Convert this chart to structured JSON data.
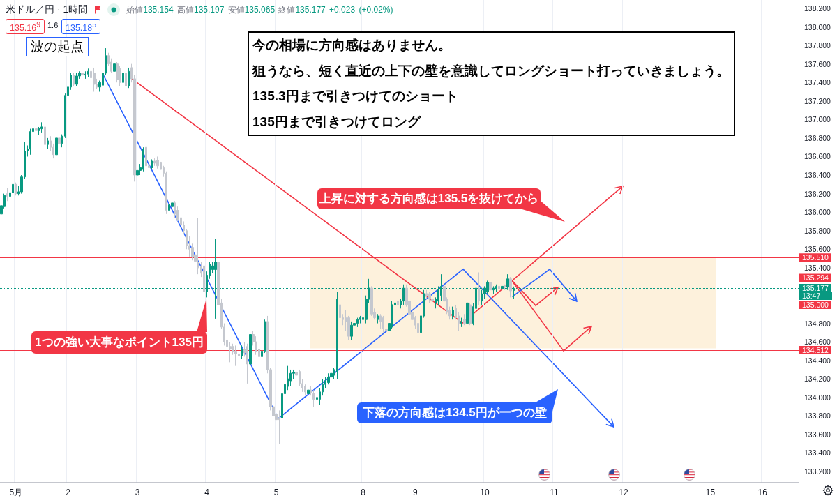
{
  "chart_data": {
    "type": "candlestick",
    "title": "米ドル／円 · 1時間",
    "subtitle": "始値135.154 高値135.197 安値135.065 終値135.177 +0.023 (+0.02%)",
    "annotations": [
      "波の起点",
      "今の相場に方向感はありません。",
      "狙うなら、短く直近の上下の壁を意識してロングショート打っていきましょう。",
      "135.3円まで引きつけてのショート",
      "135円まで引きつけてロング",
      "上昇に対する方向感は135.5を抜けてから",
      "1つの強い大事なポイント135円",
      "下落の方向感は134.5円が一つの壁",
      "135.16$^{9}$",
      "1.6",
      "135.18$^{5}$",
      "13:47"
    ],
    "categories": [
      null,
      null,
      null,
      null,
      null,
      "5月",
      null,
      null,
      null,
      null,
      null,
      null,
      null,
      null,
      null,
      null,
      null,
      null,
      null,
      null,
      null,
      null,
      null,
      "2",
      null,
      null,
      null,
      null,
      null,
      null,
      null,
      null,
      null,
      null,
      null,
      null,
      null,
      null,
      null,
      null,
      null,
      null,
      null,
      null,
      null,
      null,
      null,
      "3",
      null,
      null,
      null,
      null,
      null,
      null,
      null,
      null,
      null,
      null,
      null,
      null,
      null,
      null,
      null,
      null,
      null,
      null,
      null,
      null,
      null,
      null,
      null,
      "4",
      null,
      null,
      null,
      null,
      null,
      null,
      null,
      null,
      null,
      null,
      null,
      null,
      null,
      null,
      null,
      null,
      null,
      null,
      null,
      null,
      null,
      null,
      null,
      "5",
      null,
      null,
      null,
      null,
      null,
      null,
      null,
      null,
      null,
      null,
      null,
      null,
      null,
      null,
      null,
      null,
      null,
      null,
      null,
      null,
      null,
      null,
      null,
      null,
      null,
      null,
      null,
      null,
      null,
      "8",
      null,
      null,
      null,
      null,
      null,
      null,
      null,
      null,
      null,
      null,
      null,
      null,
      null,
      null,
      null,
      null,
      null,
      "9",
      null,
      null,
      null,
      null,
      null,
      null,
      null,
      null,
      null,
      null,
      null,
      null,
      null,
      null,
      null,
      null,
      null,
      null,
      null,
      null,
      null,
      null,
      null,
      "10",
      null,
      null,
      null,
      null,
      null,
      null,
      null,
      null,
      null,
      null,
      null,
      null,
      null,
      null,
      null,
      null,
      null,
      null,
      null,
      null,
      null,
      null,
      null,
      "11",
      null,
      null,
      null,
      null,
      null,
      null,
      null,
      null,
      null,
      null,
      null,
      null,
      null,
      null,
      null,
      null,
      null,
      null,
      null,
      null,
      null,
      null,
      null,
      "12",
      null,
      null,
      null,
      null,
      null,
      null,
      null,
      null,
      null,
      null,
      null,
      null,
      null,
      null,
      null,
      null,
      null,
      null,
      null,
      null,
      null,
      null,
      null,
      null,
      null,
      null,
      null,
      null,
      null,
      "15",
      null,
      null,
      null,
      null,
      null,
      null,
      null,
      null,
      null,
      null,
      null,
      null,
      null,
      null,
      null,
      null,
      null,
      "16",
      null,
      null,
      null,
      null,
      null,
      null,
      null,
      null,
      null,
      null,
      null,
      null
    ],
    "ohlc": [
      [
        135.98,
        136.1,
        135.96,
        136.07
      ],
      [
        136.06,
        136.2,
        136.04,
        136.18
      ],
      [
        136.2,
        136.26,
        136.12,
        136.17
      ],
      [
        136.17,
        136.24,
        136.14,
        136.21
      ],
      [
        136.21,
        136.33,
        136.18,
        136.3
      ],
      [
        136.3,
        136.32,
        136.18,
        136.2
      ],
      [
        136.2,
        136.28,
        136.18,
        136.22
      ],
      [
        136.22,
        136.4,
        136.2,
        136.38
      ],
      [
        136.38,
        136.76,
        136.36,
        136.66
      ],
      [
        136.66,
        136.72,
        136.6,
        136.68
      ],
      [
        136.68,
        136.9,
        136.62,
        136.87
      ],
      [
        136.87,
        136.93,
        136.82,
        136.9
      ],
      [
        136.9,
        136.93,
        136.84,
        136.88
      ],
      [
        136.88,
        136.92,
        136.83,
        136.9
      ],
      [
        136.9,
        136.97,
        136.86,
        136.92
      ],
      [
        136.92,
        136.95,
        136.69,
        136.73
      ],
      [
        136.73,
        136.8,
        136.68,
        136.77
      ],
      [
        136.77,
        136.82,
        136.66,
        136.7
      ],
      [
        136.7,
        136.74,
        136.58,
        136.62
      ],
      [
        136.62,
        136.83,
        136.6,
        136.8
      ],
      [
        136.8,
        136.84,
        136.72,
        136.74
      ],
      [
        136.74,
        136.84,
        136.7,
        136.82
      ],
      [
        136.82,
        137.28,
        136.8,
        137.26
      ],
      [
        137.26,
        137.38,
        137.22,
        137.35
      ],
      [
        137.35,
        137.5,
        137.32,
        137.48
      ],
      [
        137.48,
        137.5,
        137.36,
        137.38
      ],
      [
        137.38,
        137.5,
        137.36,
        137.47
      ],
      [
        137.47,
        137.52,
        137.44,
        137.5
      ],
      [
        137.5,
        137.54,
        137.46,
        137.48
      ],
      [
        137.48,
        137.52,
        137.44,
        137.49
      ],
      [
        137.49,
        137.55,
        137.46,
        137.52
      ],
      [
        137.52,
        137.56,
        137.43,
        137.45
      ],
      [
        137.5,
        137.56,
        137.3,
        137.38
      ],
      [
        137.38,
        137.44,
        137.33,
        137.35
      ],
      [
        137.35,
        137.42,
        137.3,
        137.4
      ],
      [
        137.37,
        137.52,
        137.35,
        137.5
      ],
      [
        137.5,
        137.77,
        137.48,
        137.69
      ],
      [
        137.69,
        137.72,
        137.58,
        137.6
      ],
      [
        137.62,
        137.66,
        137.5,
        137.52
      ],
      [
        137.52,
        137.72,
        137.5,
        137.6
      ],
      [
        137.6,
        137.62,
        137.4,
        137.43
      ],
      [
        137.55,
        137.58,
        137.36,
        137.4
      ],
      [
        137.4,
        137.56,
        137.25,
        137.5
      ],
      [
        137.5,
        137.54,
        137.32,
        137.36
      ],
      [
        137.36,
        137.56,
        137.34,
        137.52
      ],
      [
        137.56,
        137.6,
        137.4,
        137.44
      ],
      [
        137.44,
        137.48,
        136.33,
        136.4
      ],
      [
        136.4,
        136.5,
        136.36,
        136.45
      ],
      [
        136.45,
        136.52,
        136.4,
        136.48
      ],
      [
        136.46,
        136.7,
        136.44,
        136.68
      ],
      [
        136.7,
        136.72,
        136.46,
        136.5
      ],
      [
        136.5,
        136.6,
        136.44,
        136.48
      ],
      [
        136.48,
        136.57,
        136.46,
        136.55
      ],
      [
        136.55,
        136.58,
        136.5,
        136.53
      ],
      [
        136.56,
        136.6,
        136.47,
        136.5
      ],
      [
        136.54,
        136.58,
        136.42,
        136.46
      ],
      [
        136.48,
        136.5,
        136.38,
        136.42
      ],
      [
        136.42,
        136.44,
        135.98,
        136.02
      ],
      [
        136.02,
        136.16,
        135.98,
        136.08
      ],
      [
        136.06,
        136.14,
        135.96,
        136.1
      ],
      [
        136.1,
        136.12,
        135.94,
        135.98
      ],
      [
        136.02,
        136.06,
        135.9,
        135.92
      ],
      [
        135.94,
        136,
        135.84,
        135.86
      ],
      [
        135.86,
        135.9,
        135.76,
        135.8
      ],
      [
        135.8,
        135.82,
        135.6,
        135.64
      ],
      [
        135.64,
        135.74,
        135.52,
        135.6
      ],
      [
        135.62,
        135.66,
        135.48,
        135.52
      ],
      [
        135.54,
        135.58,
        135.42,
        135.47
      ],
      [
        135.46,
        135.94,
        135.33,
        135.4
      ],
      [
        135.42,
        135.46,
        135.3,
        135.34
      ],
      [
        135.42,
        135.46,
        135.1,
        135.14
      ],
      [
        135.14,
        135.36,
        135.08,
        135.32
      ],
      [
        135.32,
        135.46,
        135.28,
        135.44
      ],
      [
        135.38,
        135.46,
        135.34,
        135.42
      ],
      [
        135.38,
        135.71,
        134.85,
        135.46
      ],
      [
        135.46,
        135.67,
        134.96,
        135
      ],
      [
        135.02,
        135.06,
        134.74,
        134.76
      ],
      [
        134.76,
        134.8,
        134.56,
        134.6
      ],
      [
        134.62,
        134.66,
        134.5,
        134.55
      ],
      [
        134.55,
        134.6,
        134.38,
        134.52
      ],
      [
        134.55,
        134.58,
        134.46,
        134.5
      ],
      [
        134.5,
        134.56,
        134.34,
        134.47
      ],
      [
        134.47,
        134.5,
        134.42,
        134.45
      ],
      [
        134.45,
        134.56,
        134.42,
        134.52
      ],
      [
        134.52,
        134.6,
        134.44,
        134.48
      ],
      [
        134.55,
        134.58,
        134.15,
        134.36
      ],
      [
        134.36,
        134.82,
        134.34,
        134.68
      ],
      [
        134.68,
        134.72,
        134.56,
        134.6
      ],
      [
        134.6,
        134.66,
        134.46,
        134.5
      ],
      [
        134.52,
        134.56,
        134.36,
        134.44
      ],
      [
        134.44,
        134.54,
        134.38,
        134.5
      ],
      [
        134.5,
        134.84,
        134.48,
        134.82
      ],
      [
        134.82,
        134.88,
        134.26,
        134.3
      ],
      [
        134.3,
        134.32,
        133.86,
        133.9
      ],
      [
        133.9,
        133.98,
        133.76,
        133.8
      ],
      [
        133.82,
        133.88,
        133.72,
        133.76
      ],
      [
        133.78,
        133.86,
        133.5,
        133.76
      ],
      [
        133.78,
        134.08,
        133.74,
        134.04
      ],
      [
        134.04,
        134.18,
        134,
        134.14
      ],
      [
        134.12,
        134.34,
        134.08,
        134.2
      ],
      [
        134.18,
        134.3,
        134.12,
        134.26
      ],
      [
        134.26,
        134.3,
        134.2,
        134.27
      ],
      [
        134.27,
        134.3,
        134.18,
        134.24
      ],
      [
        134.28,
        134.3,
        134.12,
        134.15
      ],
      [
        134.15,
        134.2,
        134.06,
        134.1
      ],
      [
        134.12,
        134.14,
        134.02,
        134.06
      ],
      [
        134.04,
        134.12,
        134,
        134.08
      ],
      [
        134.08,
        134.12,
        134.02,
        134.05
      ],
      [
        134.04,
        134.08,
        133.9,
        133.98
      ],
      [
        133.98,
        134.04,
        133.92,
        134
      ],
      [
        133.98,
        134.1,
        133.92,
        134.06
      ],
      [
        134.06,
        134.2,
        134.02,
        134.14
      ],
      [
        134.14,
        134.22,
        134.1,
        134.18
      ],
      [
        134.16,
        134.26,
        134.14,
        134.22
      ],
      [
        134.22,
        134.3,
        134.18,
        134.26
      ],
      [
        134.24,
        134.32,
        134.2,
        134.3
      ],
      [
        134.28,
        135.14,
        134.2,
        135.06
      ],
      [
        135,
        135.08,
        134.72,
        134.86
      ],
      [
        134.86,
        134.9,
        134.78,
        134.84
      ],
      [
        134.86,
        134.94,
        134.72,
        134.82
      ],
      [
        134.86,
        134.88,
        134.62,
        134.66
      ],
      [
        134.66,
        134.82,
        134.62,
        134.78
      ],
      [
        134.78,
        134.84,
        134.74,
        134.8
      ],
      [
        134.8,
        134.86,
        134.76,
        134.84
      ],
      [
        134.84,
        134.88,
        134.8,
        134.86
      ],
      [
        134.84,
        134.9,
        134.8,
        134.86
      ],
      [
        134.84,
        135.1,
        134.8,
        135.06
      ],
      [
        135.06,
        135.28,
        135.02,
        135.18
      ],
      [
        135.18,
        135.2,
        134.88,
        134.9
      ],
      [
        134.92,
        134.96,
        134.84,
        134.86
      ],
      [
        134.84,
        134.9,
        134.8,
        134.88
      ],
      [
        134.88,
        134.9,
        134.74,
        134.82
      ],
      [
        134.86,
        134.88,
        134.7,
        134.74
      ],
      [
        134.74,
        134.78,
        134.66,
        134.72
      ],
      [
        134.72,
        134.82,
        134.66,
        134.8
      ],
      [
        134.76,
        135.04,
        134.74,
        135
      ],
      [
        135,
        135.08,
        134.94,
        135.02
      ],
      [
        135.04,
        135.06,
        134.96,
        135
      ],
      [
        135,
        135.06,
        134.96,
        135.04
      ],
      [
        135.04,
        135.22,
        135,
        135.18
      ],
      [
        135.18,
        135.22,
        134.98,
        135
      ],
      [
        135.04,
        135.06,
        134.88,
        134.9
      ],
      [
        134.92,
        134.96,
        134.8,
        134.84
      ],
      [
        134.86,
        134.88,
        134.74,
        134.78
      ],
      [
        134.8,
        134.84,
        134.64,
        134.7
      ],
      [
        134.7,
        134.92,
        134.68,
        134.88
      ],
      [
        134.88,
        135.16,
        134.86,
        135.12
      ],
      [
        135.12,
        135.16,
        135.06,
        135.1
      ],
      [
        135.12,
        135.14,
        135.02,
        135.06
      ],
      [
        135.06,
        135.1,
        135,
        135.04
      ],
      [
        135.02,
        135.08,
        134.96,
        135.06
      ],
      [
        135.04,
        135.2,
        135,
        135.16
      ],
      [
        135.1,
        135.33,
        135.04,
        135.2
      ],
      [
        135.2,
        135.22,
        135.02,
        135.04
      ],
      [
        135.06,
        135.08,
        134.9,
        134.92
      ],
      [
        134.94,
        134.98,
        134.84,
        134.88
      ],
      [
        134.88,
        134.98,
        134.84,
        134.94
      ],
      [
        134.96,
        135,
        134.84,
        134.86
      ],
      [
        134.88,
        134.92,
        134.72,
        134.8
      ],
      [
        134.8,
        134.86,
        134.76,
        134.82
      ],
      [
        134.84,
        134.9,
        134.78,
        134.8
      ],
      [
        134.8,
        135.1,
        134.78,
        135.02
      ],
      [
        135,
        135.02,
        134.78,
        134.8
      ],
      [
        134.8,
        135.02,
        134.78,
        134.98
      ],
      [
        134.96,
        135.2,
        134.92,
        135.18
      ],
      [
        135.18,
        135.35,
        135,
        135.04
      ],
      [
        135.04,
        135.16,
        135,
        135.12
      ],
      [
        135.12,
        135.2,
        135.06,
        135.18
      ],
      [
        135.14,
        135.26,
        135.12,
        135.24
      ],
      [
        135.24,
        135.26,
        135.12,
        135.16
      ],
      [
        135.16,
        135.2,
        135.12,
        135.18
      ],
      [
        135.18,
        135.22,
        135.14,
        135.2
      ],
      [
        135.2,
        135.22,
        135.14,
        135.17
      ],
      [
        135.17,
        135.22,
        135.14,
        135.2
      ],
      [
        135.2,
        135.22,
        135.16,
        135.19
      ],
      [
        135.19,
        135.33,
        135.16,
        135.28
      ],
      [
        135.28,
        135.3,
        135.08,
        135.15
      ],
      [
        135.154,
        135.197,
        135.065,
        135.177
      ],
      null,
      null,
      null,
      null,
      null,
      null,
      null,
      null,
      null,
      null,
      null,
      null,
      null,
      null,
      null,
      null,
      null,
      null,
      null,
      null,
      null,
      null,
      null,
      null,
      null,
      null,
      null,
      null,
      null,
      null,
      null,
      null,
      null,
      null,
      null,
      null,
      null,
      null,
      null,
      null,
      null,
      null,
      null,
      null,
      null,
      null,
      null,
      null,
      null,
      null,
      null,
      null,
      null,
      null,
      null,
      null,
      null,
      null,
      null,
      null,
      null,
      null,
      null,
      null,
      null,
      null,
      null,
      null,
      null,
      null,
      null,
      null,
      null,
      null,
      null,
      null,
      null,
      null,
      null,
      null,
      null,
      null,
      null,
      null,
      null,
      null,
      null,
      null,
      null,
      null,
      null,
      null,
      null,
      null,
      null,
      null,
      null,
      null
    ],
    "colors": [
      "#089981",
      "#089981",
      "#c5c8cf",
      "#089981",
      "#089981",
      "#c5c8cf",
      "#089981",
      "#089981",
      "#089981",
      "#089981",
      "#089981",
      "#089981",
      "#c5c8cf",
      "#089981",
      "#089981",
      "#c5c8cf",
      "#089981",
      "#c5c8cf",
      "#c5c8cf",
      "#089981",
      "#c5c8cf",
      "#089981",
      "#089981",
      "#089981",
      "#089981",
      "#c5c8cf",
      "#089981",
      "#089981",
      "#c5c8cf",
      "#089981",
      "#089981",
      "#c5c8cf",
      "#c5c8cf",
      "#c5c8cf",
      "#089981",
      "#089981",
      "#089981",
      "#c5c8cf",
      "#c5c8cf",
      "#089981",
      "#c5c8cf",
      "#c5c8cf",
      "#089981",
      "#c5c8cf",
      "#089981",
      "#c5c8cf",
      "#c5c8cf",
      "#089981",
      "#089981",
      "#089981",
      "#c5c8cf",
      "#c5c8cf",
      "#089981",
      "#c5c8cf",
      "#c5c8cf",
      "#c5c8cf",
      "#c5c8cf",
      "#c5c8cf",
      "#089981",
      "#089981",
      "#c5c8cf",
      "#c5c8cf",
      "#c5c8cf",
      "#c5c8cf",
      "#c5c8cf",
      "#c5c8cf",
      "#c5c8cf",
      "#c5c8cf",
      "#c5c8cf",
      "#c5c8cf",
      "#c5c8cf",
      "#089981",
      "#089981",
      "#089981",
      "#089981",
      "#c5c8cf",
      "#c5c8cf",
      "#c5c8cf",
      "#c5c8cf",
      "#c5c8cf",
      "#c5c8cf",
      "#c5c8cf",
      "#c5c8cf",
      "#089981",
      "#c5c8cf",
      "#c5c8cf",
      "#089981",
      "#c5c8cf",
      "#c5c8cf",
      "#c5c8cf",
      "#089981",
      "#089981",
      "#c5c8cf",
      "#c5c8cf",
      "#c5c8cf",
      "#c5c8cf",
      "#c5c8cf",
      "#089981",
      "#089981",
      "#089981",
      "#089981",
      "#089981",
      "#c5c8cf",
      "#c5c8cf",
      "#c5c8cf",
      "#c5c8cf",
      "#089981",
      "#c5c8cf",
      "#c5c8cf",
      "#089981",
      "#089981",
      "#089981",
      "#089981",
      "#089981",
      "#089981",
      "#089981",
      "#089981",
      "#c5c8cf",
      "#c5c8cf",
      "#c5c8cf",
      "#c5c8cf",
      "#089981",
      "#089981",
      "#089981",
      "#089981",
      "#089981",
      "#089981",
      "#089981",
      "#c5c8cf",
      "#c5c8cf",
      "#089981",
      "#c5c8cf",
      "#c5c8cf",
      "#c5c8cf",
      "#089981",
      "#089981",
      "#089981",
      "#c5c8cf",
      "#089981",
      "#089981",
      "#c5c8cf",
      "#c5c8cf",
      "#c5c8cf",
      "#c5c8cf",
      "#c5c8cf",
      "#089981",
      "#089981",
      "#c5c8cf",
      "#c5c8cf",
      "#c5c8cf",
      "#089981",
      "#089981",
      "#089981",
      "#c5c8cf",
      "#c5c8cf",
      "#c5c8cf",
      "#089981",
      "#c5c8cf",
      "#c5c8cf",
      "#089981",
      "#c5c8cf",
      "#089981",
      "#c5c8cf",
      "#089981",
      "#089981",
      "#c5c8cf",
      "#089981",
      "#089981",
      "#089981",
      "#c5c8cf",
      "#089981",
      "#089981",
      "#c5c8cf",
      "#089981",
      "#c5c8cf",
      "#089981",
      "#c5c8cf",
      "#089981",
      null,
      null,
      null,
      null,
      null,
      null,
      null,
      null,
      null,
      null,
      null,
      null,
      null,
      null,
      null,
      null,
      null,
      null,
      null,
      null,
      null,
      null,
      null,
      null,
      null,
      null,
      null,
      null,
      null,
      null,
      null,
      null,
      null,
      null,
      null,
      null,
      null,
      null,
      null,
      null,
      null,
      null,
      null,
      null,
      null,
      null,
      null,
      null,
      null,
      null,
      null,
      null,
      null,
      null,
      null,
      null,
      null,
      null,
      null,
      null,
      null,
      null,
      null,
      null,
      null,
      null,
      null,
      null,
      null,
      null,
      null,
      null,
      null,
      null,
      null,
      null,
      null,
      null,
      null,
      null,
      null,
      null,
      null,
      null,
      null,
      null,
      null,
      null,
      null,
      null,
      null,
      null,
      null,
      null,
      null,
      null,
      null,
      null
    ],
    "ylim": [
      133.08,
      138.29
    ],
    "yticks": [
      {
        "value": 133.2,
        "label": "133.200"
      },
      {
        "value": 133.4,
        "label": "133.400"
      },
      {
        "value": 133.6,
        "label": "133.600"
      },
      {
        "value": 133.8,
        "label": "133.800"
      },
      {
        "value": 134,
        "label": "134.000"
      },
      {
        "value": 134.2,
        "label": "134.200"
      },
      {
        "value": 134.4,
        "label": "134.400"
      },
      {
        "value": 134.6,
        "label": "134.600"
      },
      {
        "value": 134.8,
        "label": "134.800"
      },
      {
        "value": 135.4,
        "label": "135.400"
      },
      {
        "value": 135.6,
        "label": "135.600"
      },
      {
        "value": 135.8,
        "label": "135.800"
      },
      {
        "value": 136,
        "label": "136.000"
      },
      {
        "value": 136.2,
        "label": "136.200"
      },
      {
        "value": 136.4,
        "label": "136.400"
      },
      {
        "value": 136.6,
        "label": "136.600"
      },
      {
        "value": 136.8,
        "label": "136.800"
      },
      {
        "value": 137,
        "label": "137.000"
      },
      {
        "value": 137.2,
        "label": "137.200"
      },
      {
        "value": 137.4,
        "label": "137.400"
      },
      {
        "value": 137.6,
        "label": "137.600"
      },
      {
        "value": 137.8,
        "label": "137.800"
      },
      {
        "value": 138,
        "label": "138.000"
      },
      {
        "value": 138.2,
        "label": "138.200"
      }
    ],
    "ref_lines": [
      {
        "axis": "y",
        "value": 135.51,
        "label": "135.510",
        "color": "#f23645"
      },
      {
        "axis": "y",
        "value": 135.294,
        "label": "135.294",
        "color": "#f23645"
      },
      {
        "axis": "y",
        "value": 135,
        "label": "135.000",
        "color": "#f23645"
      },
      {
        "axis": "y",
        "value": 134.512,
        "label": "134.512",
        "color": "#f23645"
      },
      {
        "axis": "y",
        "value": 135.177,
        "label": "135.177",
        "color": "#089981",
        "line_style": "dotted"
      }
    ],
    "bands": [
      {
        "axis": "y",
        "from": 134.53,
        "to": 135.51,
        "color": "#fdf1dc"
      }
    ],
    "grid": "x"
  }
}
